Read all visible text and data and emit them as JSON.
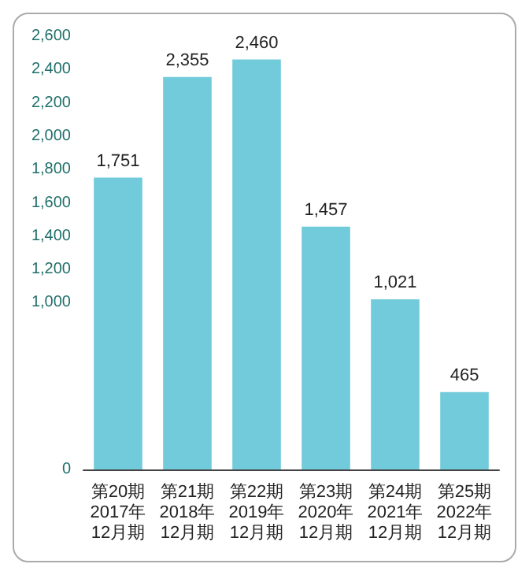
{
  "chart_data": {
    "type": "bar",
    "categories": [
      "第20期\n2017年\n12月期",
      "第21期\n2018年\n12月期",
      "第22期\n2019年\n12月期",
      "第23期\n2020年\n12月期",
      "第24期\n2021年\n12月期",
      "第25期\n2022年\n12月期"
    ],
    "values": [
      1751,
      2355,
      2460,
      1457,
      1021,
      465
    ],
    "color": "#72cbdb",
    "ylim": [
      0,
      2600
    ],
    "yticks": [
      0,
      {
        "value": 1000,
        "label": "1,000"
      },
      {
        "value": 1200,
        "label": "1,200"
      },
      {
        "value": 1400,
        "label": "1,400"
      },
      {
        "value": 1600,
        "label": "1,600"
      },
      {
        "value": 1800,
        "label": "1,800"
      },
      {
        "value": 2000,
        "label": "2,000"
      },
      {
        "value": 2200,
        "label": "2,200"
      },
      {
        "value": 2400,
        "label": "2,400"
      },
      {
        "value": 2600,
        "label": "2,600"
      }
    ],
    "value_labels": [
      "1,751",
      "2,355",
      "2,460",
      "1,457",
      "1,021",
      "465"
    ],
    "grid": false
  }
}
